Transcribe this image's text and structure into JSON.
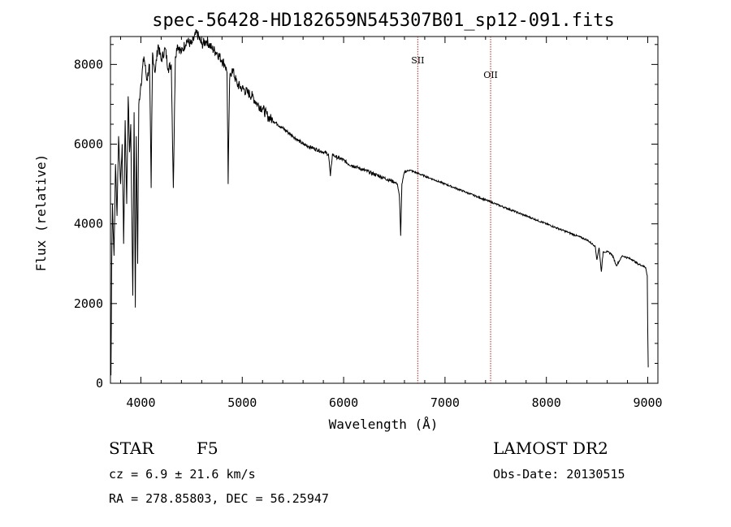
{
  "title": "spec-56428-HD182659N545307B01_sp12-091.fits",
  "info": {
    "class": "STAR",
    "subclass": "F5",
    "cz": "cz = 6.9 ± 21.6 km/s",
    "radec": "RA = 278.85803, DEC =  56.25947",
    "survey": "LAMOST DR2",
    "obs_date": "Obs-Date: 20130515"
  },
  "chart_data": {
    "type": "line",
    "title": "spec-56428-HD182659N545307B01_sp12-091.fits",
    "xlabel": "Wavelength (Å)",
    "ylabel": "Flux (relative)",
    "xlim": [
      3700,
      9100
    ],
    "ylim": [
      0,
      8700
    ],
    "xticks": [
      4000,
      5000,
      6000,
      7000,
      8000,
      9000
    ],
    "yticks": [
      0,
      2000,
      4000,
      6000,
      8000
    ],
    "series": [
      {
        "color": "#000000",
        "x": [
          3700,
          3705,
          3712,
          3720,
          3735,
          3750,
          3765,
          3780,
          3800,
          3815,
          3830,
          3845,
          3860,
          3875,
          3888,
          3900,
          3920,
          3933,
          3945,
          3955,
          3968,
          3980,
          4000,
          4030,
          4060,
          4085,
          4101,
          4115,
          4140,
          4170,
          4200,
          4240,
          4270,
          4300,
          4320,
          4340,
          4360,
          4400,
          4450,
          4500,
          4550,
          4600,
          4650,
          4700,
          4750,
          4800,
          4830,
          4850,
          4861,
          4875,
          4900,
          4950,
          5000,
          5050,
          5100,
          5150,
          5200,
          5250,
          5300,
          5350,
          5400,
          5450,
          5500,
          5550,
          5600,
          5650,
          5700,
          5750,
          5800,
          5850,
          5870,
          5890,
          5910,
          5950,
          6000,
          6050,
          6100,
          6150,
          6200,
          6250,
          6300,
          6350,
          6400,
          6450,
          6500,
          6530,
          6550,
          6563,
          6575,
          6600,
          6650,
          6700,
          6750,
          6800,
          6850,
          6900,
          6950,
          7000,
          7100,
          7200,
          7300,
          7400,
          7500,
          7600,
          7700,
          7800,
          7900,
          8000,
          8100,
          8200,
          8300,
          8400,
          8450,
          8480,
          8498,
          8520,
          8542,
          8560,
          8600,
          8640,
          8662,
          8690,
          8750,
          8800,
          8850,
          8900,
          8950,
          8980,
          8995,
          9000,
          9005
        ],
        "values": [
          1400,
          200,
          3000,
          4500,
          3200,
          5500,
          4200,
          6200,
          5000,
          6000,
          3500,
          6600,
          4500,
          7200,
          5800,
          6500,
          2200,
          6800,
          1900,
          6200,
          3000,
          7000,
          7500,
          8200,
          7600,
          8000,
          4900,
          8300,
          7800,
          8500,
          8100,
          8400,
          7900,
          8000,
          4900,
          8200,
          8500,
          8300,
          8600,
          8500,
          8800,
          8500,
          8600,
          8400,
          8300,
          8100,
          8000,
          7800,
          5000,
          7600,
          7900,
          7500,
          7400,
          7300,
          7200,
          7000,
          6900,
          6700,
          6600,
          6500,
          6400,
          6300,
          6200,
          6100,
          6000,
          5950,
          5900,
          5850,
          5800,
          5750,
          5200,
          5750,
          5700,
          5650,
          5600,
          5500,
          5450,
          5400,
          5350,
          5300,
          5250,
          5200,
          5150,
          5100,
          5050,
          5000,
          4700,
          3700,
          5000,
          5300,
          5350,
          5300,
          5250,
          5200,
          5150,
          5100,
          5050,
          5000,
          4900,
          4800,
          4700,
          4600,
          4500,
          4400,
          4300,
          4200,
          4100,
          4000,
          3900,
          3800,
          3700,
          3600,
          3500,
          3450,
          3100,
          3400,
          2800,
          3300,
          3300,
          3250,
          3150,
          2950,
          3200,
          3150,
          3100,
          3000,
          2950,
          2900,
          2700,
          1300,
          400
        ]
      }
    ],
    "vlines": [
      {
        "x": 6731,
        "label": "SII",
        "color": "#b22222"
      },
      {
        "x": 7450,
        "label": "OII",
        "color": "#b22222"
      }
    ]
  }
}
